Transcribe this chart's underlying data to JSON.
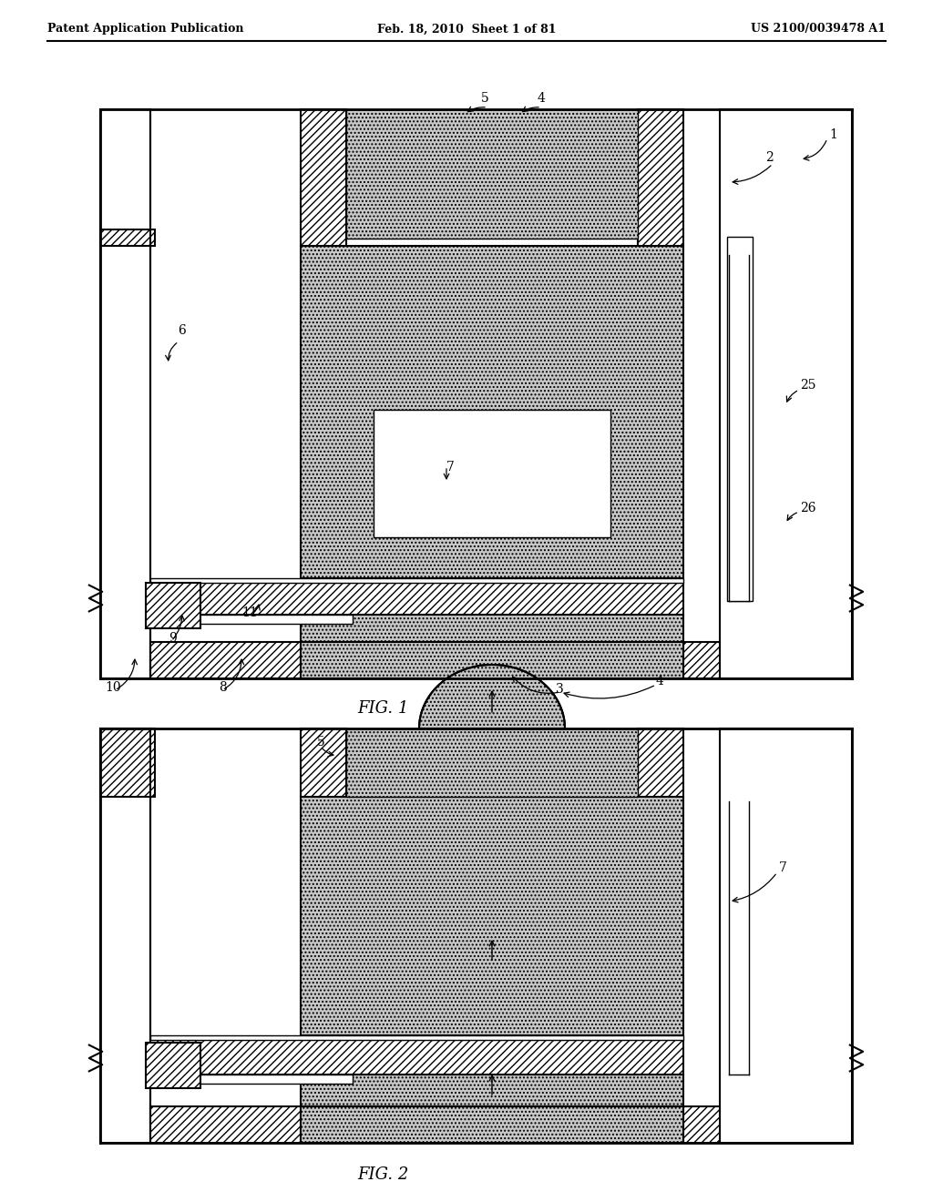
{
  "header_left": "Patent Application Publication",
  "header_mid": "Feb. 18, 2010  Sheet 1 of 81",
  "header_right": "US 2100/0039478 A1",
  "fig1_label": "FIG. 1",
  "fig2_label": "FIG. 2",
  "bg_color": "#ffffff"
}
